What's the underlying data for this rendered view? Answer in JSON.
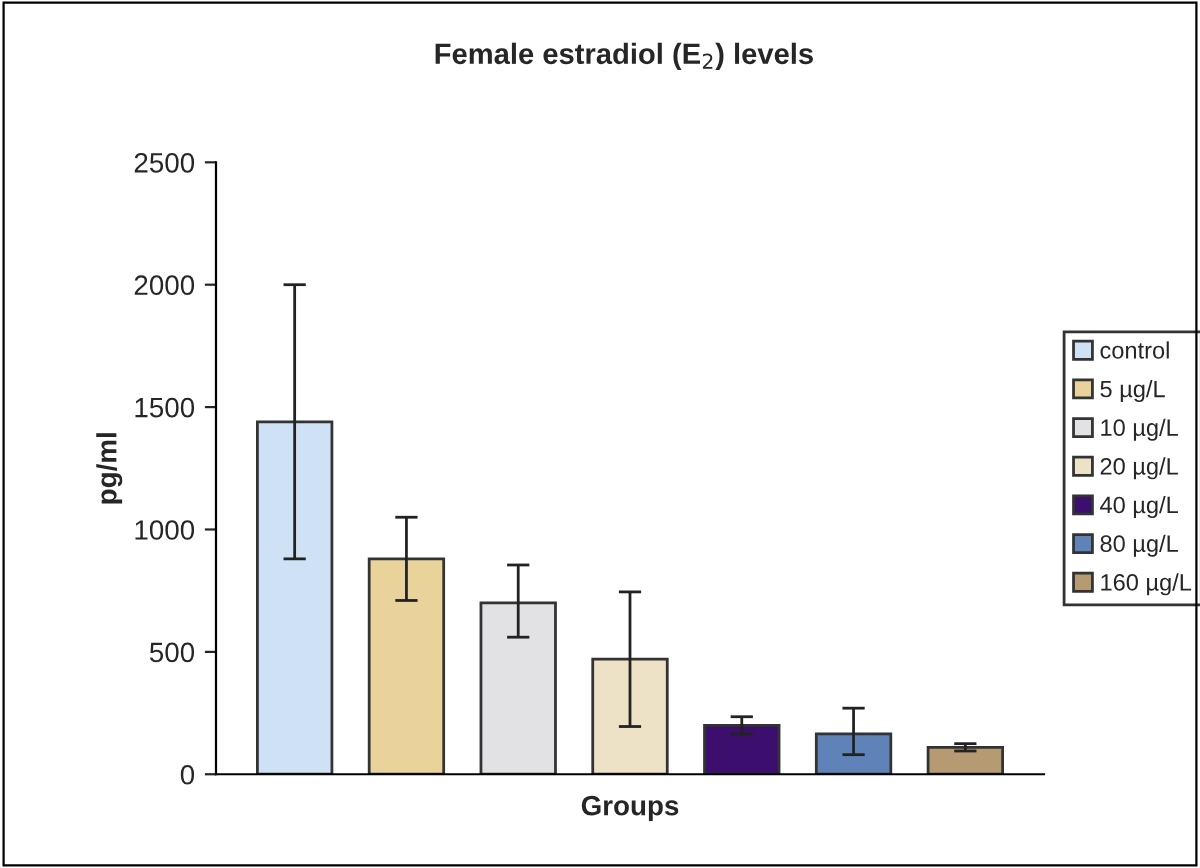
{
  "chart_data": {
    "type": "bar",
    "title": "Female estradiol (E$_{2}$) levels",
    "xlabel": "Groups",
    "ylabel": "pg/ml",
    "categories": [
      null
    ],
    "series": [
      {
        "name": "control",
        "color": "#cfe2f5",
        "values": [
          1440
        ],
        "errors": [
          [
            880,
            2000
          ]
        ]
      },
      {
        "name": "5 µg/L",
        "color": "#ead39a",
        "values": [
          880
        ],
        "errors": [
          [
            710,
            1050
          ]
        ]
      },
      {
        "name": "10 µg/L",
        "color": "#e2e2e4",
        "values": [
          700
        ],
        "errors": [
          [
            560,
            855
          ]
        ]
      },
      {
        "name": "20 µg/L",
        "color": "#ede1c6",
        "values": [
          470
        ],
        "errors": [
          [
            195,
            745
          ]
        ]
      },
      {
        "name": "40 µg/L",
        "color": "#3c0f6e",
        "values": [
          200
        ],
        "errors": [
          [
            165,
            235
          ]
        ]
      },
      {
        "name": "80 µg/L",
        "color": "#5f82b8",
        "values": [
          165
        ],
        "errors": [
          [
            80,
            270
          ]
        ]
      },
      {
        "name": "160 µg/L",
        "color": "#b59a72",
        "values": [
          110
        ],
        "errors": [
          [
            95,
            125
          ]
        ]
      }
    ],
    "ylim": [
      0,
      2500
    ],
    "yticks": [
      0,
      500,
      1000,
      1500,
      2000,
      2500
    ],
    "grid": false,
    "legend": "right"
  }
}
